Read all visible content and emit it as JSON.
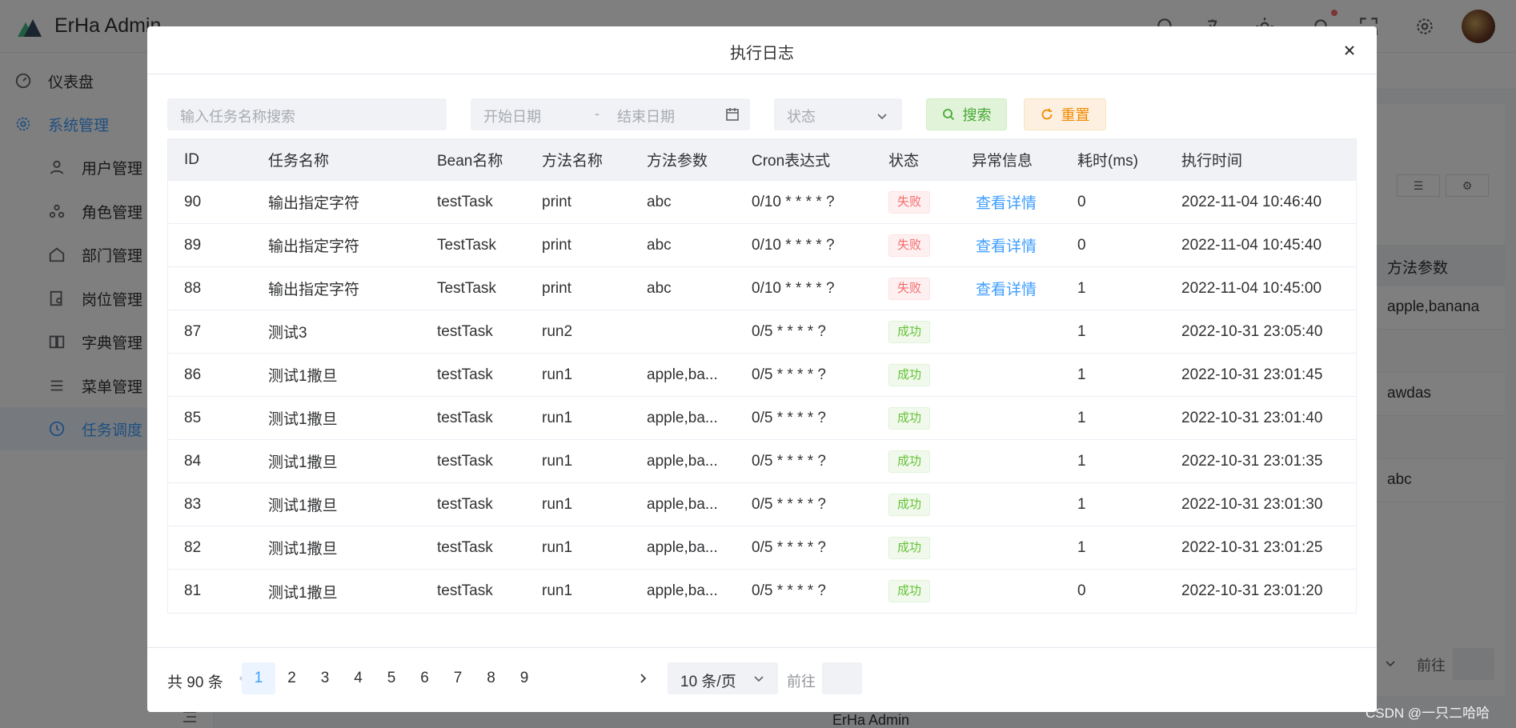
{
  "app": {
    "title": "ErHa Admin",
    "footer": "ErHa Admin"
  },
  "sidebar": {
    "items": [
      {
        "label": "仪表盘",
        "icon": "dashboard-icon"
      },
      {
        "label": "系统管理",
        "icon": "gear-icon"
      },
      {
        "label": "用户管理",
        "icon": "user-icon"
      },
      {
        "label": "角色管理",
        "icon": "role-icon"
      },
      {
        "label": "部门管理",
        "icon": "home-icon"
      },
      {
        "label": "岗位管理",
        "icon": "post-icon"
      },
      {
        "label": "字典管理",
        "icon": "book-icon"
      },
      {
        "label": "菜单管理",
        "icon": "menu-icon"
      },
      {
        "label": "任务调度",
        "icon": "clock-icon"
      }
    ]
  },
  "background_table": {
    "column_header": "方法参数",
    "cells": [
      "apple,banana",
      "awdas",
      "abc"
    ],
    "goto_label": "前往"
  },
  "dialog": {
    "title": "执行日志",
    "task_search_placeholder": "输入任务名称搜索",
    "start_date_placeholder": "开始日期",
    "date_separator": "-",
    "end_date_placeholder": "结束日期",
    "status_placeholder": "状态",
    "search_label": "搜索",
    "reset_label": "重置",
    "columns": [
      "ID",
      "任务名称",
      "Bean名称",
      "方法名称",
      "方法参数",
      "Cron表达式",
      "状态",
      "异常信息",
      "耗时(ms)",
      "执行时间"
    ],
    "rows": [
      {
        "id": "90",
        "task": "输出指定字符",
        "bean": "testTask",
        "method": "print",
        "params": "abc",
        "cron": "0/10 * * * * ?",
        "status": "失败",
        "status_type": "fail",
        "error": "查看详情",
        "cost": "0",
        "time": "2022-11-04 10:46:40"
      },
      {
        "id": "89",
        "task": "输出指定字符",
        "bean": "TestTask",
        "method": "print",
        "params": "abc",
        "cron": "0/10 * * * * ?",
        "status": "失败",
        "status_type": "fail",
        "error": "查看详情",
        "cost": "0",
        "time": "2022-11-04 10:45:40"
      },
      {
        "id": "88",
        "task": "输出指定字符",
        "bean": "TestTask",
        "method": "print",
        "params": "abc",
        "cron": "0/10 * * * * ?",
        "status": "失败",
        "status_type": "fail",
        "error": "查看详情",
        "cost": "1",
        "time": "2022-11-04 10:45:00"
      },
      {
        "id": "87",
        "task": "测试3",
        "bean": "testTask",
        "method": "run2",
        "params": "",
        "cron": "0/5 * * * * ?",
        "status": "成功",
        "status_type": "ok",
        "error": "",
        "cost": "1",
        "time": "2022-10-31 23:05:40"
      },
      {
        "id": "86",
        "task": "测试1撒旦",
        "bean": "testTask",
        "method": "run1",
        "params": "apple,ba...",
        "cron": "0/5 * * * * ?",
        "status": "成功",
        "status_type": "ok",
        "error": "",
        "cost": "1",
        "time": "2022-10-31 23:01:45"
      },
      {
        "id": "85",
        "task": "测试1撒旦",
        "bean": "testTask",
        "method": "run1",
        "params": "apple,ba...",
        "cron": "0/5 * * * * ?",
        "status": "成功",
        "status_type": "ok",
        "error": "",
        "cost": "1",
        "time": "2022-10-31 23:01:40"
      },
      {
        "id": "84",
        "task": "测试1撒旦",
        "bean": "testTask",
        "method": "run1",
        "params": "apple,ba...",
        "cron": "0/5 * * * * ?",
        "status": "成功",
        "status_type": "ok",
        "error": "",
        "cost": "1",
        "time": "2022-10-31 23:01:35"
      },
      {
        "id": "83",
        "task": "测试1撒旦",
        "bean": "testTask",
        "method": "run1",
        "params": "apple,ba...",
        "cron": "0/5 * * * * ?",
        "status": "成功",
        "status_type": "ok",
        "error": "",
        "cost": "1",
        "time": "2022-10-31 23:01:30"
      },
      {
        "id": "82",
        "task": "测试1撒旦",
        "bean": "testTask",
        "method": "run1",
        "params": "apple,ba...",
        "cron": "0/5 * * * * ?",
        "status": "成功",
        "status_type": "ok",
        "error": "",
        "cost": "1",
        "time": "2022-10-31 23:01:25"
      },
      {
        "id": "81",
        "task": "测试1撒旦",
        "bean": "testTask",
        "method": "run1",
        "params": "apple,ba...",
        "cron": "0/5 * * * * ?",
        "status": "成功",
        "status_type": "ok",
        "error": "",
        "cost": "0",
        "time": "2022-10-31 23:01:20"
      }
    ],
    "pagination": {
      "total_text": "共 90 条",
      "pages": [
        "1",
        "2",
        "3",
        "4",
        "5",
        "6",
        "7",
        "8",
        "9"
      ],
      "current_page": "1",
      "page_size": "10 条/页",
      "goto_label": "前往",
      "goto_value": ""
    }
  },
  "watermark": "CSDN @一只二哈哈",
  "colors": {
    "primary": "#409eff",
    "success": "#67c23a",
    "danger": "#f56c6c",
    "warning": "#f08a00"
  }
}
